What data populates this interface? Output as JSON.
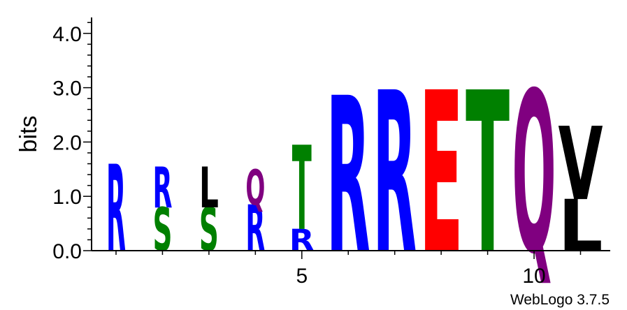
{
  "chart_data": {
    "type": "sequence-logo",
    "ylabel": "bits",
    "ylim": [
      0,
      4.2
    ],
    "yticks": [
      "0.0",
      "1.0",
      "2.0",
      "3.0",
      "4.0"
    ],
    "xticks": [
      "5",
      "10"
    ],
    "positions": [
      {
        "position": 1,
        "letters": [
          {
            "letter": "R",
            "bits": 1.6
          }
        ]
      },
      {
        "position": 2,
        "letters": [
          {
            "letter": "S",
            "bits": 0.8
          },
          {
            "letter": "R",
            "bits": 0.75
          }
        ]
      },
      {
        "position": 3,
        "letters": [
          {
            "letter": "S",
            "bits": 0.8
          },
          {
            "letter": "L",
            "bits": 0.75
          }
        ]
      },
      {
        "position": 4,
        "letters": [
          {
            "letter": "R",
            "bits": 0.85
          },
          {
            "letter": "Q",
            "bits": 0.65
          }
        ]
      },
      {
        "position": 5,
        "letters": [
          {
            "letter": "R",
            "bits": 0.4
          },
          {
            "letter": "T",
            "bits": 1.55
          }
        ]
      },
      {
        "position": 6,
        "letters": [
          {
            "letter": "R",
            "bits": 2.87
          }
        ]
      },
      {
        "position": 7,
        "letters": [
          {
            "letter": "R",
            "bits": 2.97
          }
        ]
      },
      {
        "position": 8,
        "letters": [
          {
            "letter": "E",
            "bits": 2.97
          }
        ]
      },
      {
        "position": 9,
        "letters": [
          {
            "letter": "T",
            "bits": 2.97
          }
        ]
      },
      {
        "position": 10,
        "letters": [
          {
            "letter": "Q",
            "bits": 2.97
          }
        ]
      },
      {
        "position": 11,
        "letters": [
          {
            "letter": "L",
            "bits": 0.95
          },
          {
            "letter": "V",
            "bits": 1.35
          }
        ]
      }
    ],
    "colors": {
      "R": "#0000ff",
      "S": "#008000",
      "T": "#008000",
      "L": "#000000",
      "V": "#000000",
      "Q": "#800080",
      "E": "#ff0000"
    }
  },
  "credit": "WebLogo 3.7.5"
}
